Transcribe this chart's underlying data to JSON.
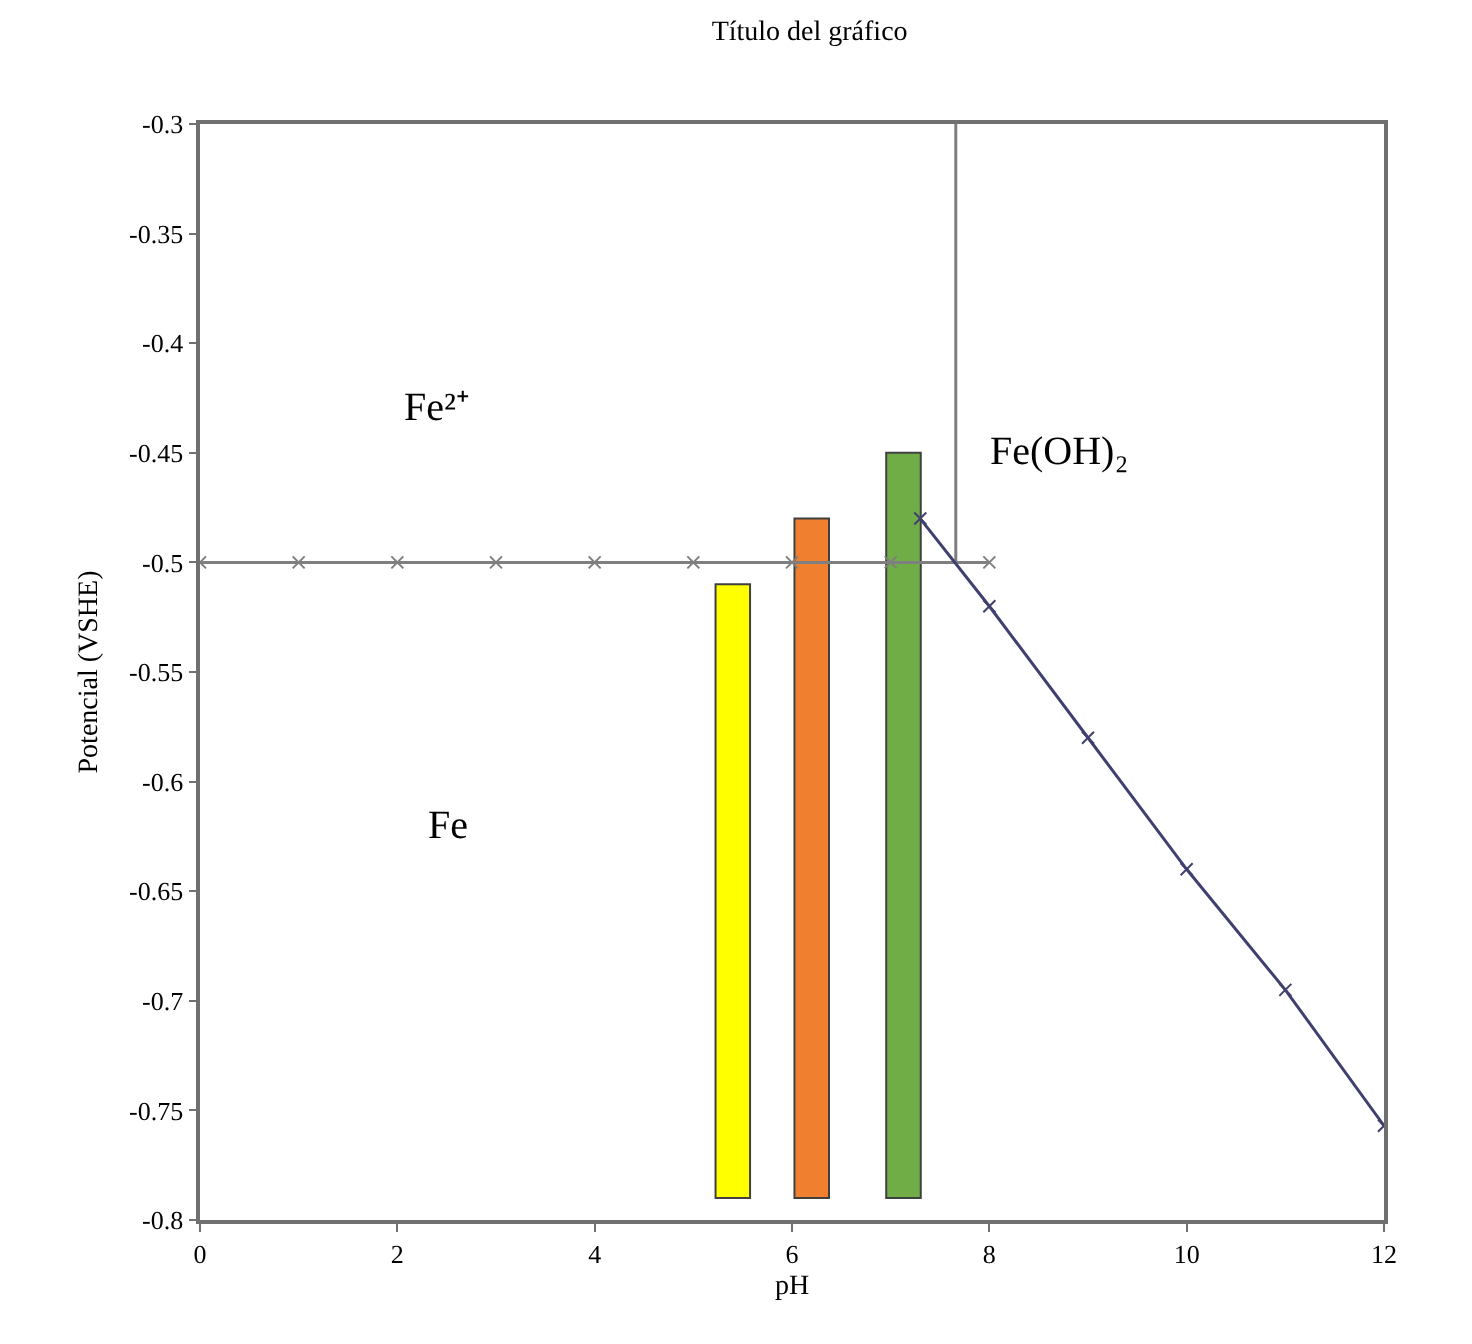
{
  "chart_data": {
    "type": "line",
    "title": "Título del gráfico",
    "xlabel": "pH",
    "ylabel": "Potencial (VSHE)",
    "xlim": [
      0,
      12
    ],
    "xticks": [
      0,
      2,
      4,
      6,
      8,
      10,
      12
    ],
    "ylim": [
      -0.8,
      -0.3
    ],
    "yticks": [
      -0.3,
      -0.35,
      -0.4,
      -0.45,
      -0.5,
      -0.55,
      -0.6,
      -0.65,
      -0.7,
      -0.75,
      -0.8
    ],
    "grid": false,
    "marker": "cross",
    "line_style": "solid",
    "series": [
      {
        "color": "#7f7f7f",
        "x": [
          0,
          1,
          2,
          3,
          4,
          5,
          6,
          7,
          8
        ],
        "values": [
          -0.5,
          -0.5,
          -0.5,
          -0.5,
          -0.5,
          -0.5,
          -0.5,
          -0.5,
          -0.5
        ]
      },
      {
        "color": "#7f7f7f",
        "marker": "none",
        "x": [
          7.66,
          7.66
        ],
        "values": [
          -0.5,
          -0.3
        ]
      },
      {
        "color": "#404070",
        "x": [
          7.3,
          8,
          9,
          10,
          11,
          12
        ],
        "values": [
          -0.48,
          -0.52,
          -0.58,
          -0.64,
          -0.695,
          -0.757
        ]
      },
      {
        "type": "bar",
        "colors": [
          "#ffff00",
          "#f08030",
          "#70ad47"
        ],
        "x": [
          5.4,
          6.2,
          7.13
        ],
        "base": [
          -0.79,
          -0.79,
          -0.79
        ],
        "values": [
          0.28,
          0.31,
          0.34
        ]
      }
    ],
    "annotations": [
      "Fe²⁺",
      "Fe(OH)₂",
      "Fe"
    ]
  }
}
